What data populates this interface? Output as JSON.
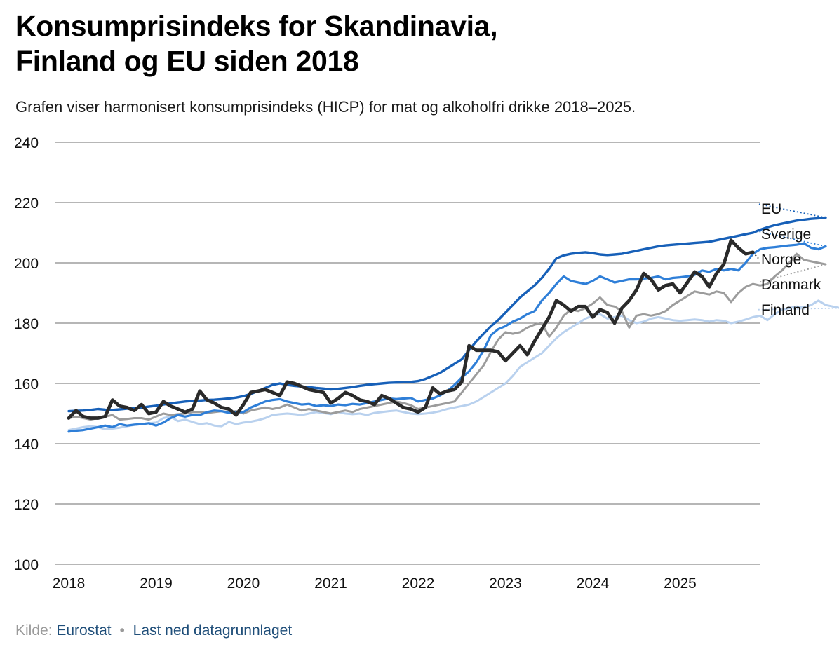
{
  "title_line1": "Konsumprisindeks for Skandinavia,",
  "title_line2": "Finland og EU siden 2018",
  "subtitle": "Grafen viser harmonisert konsumprisindeks (HICP) for mat og alkoholfri drikke 2018–2025.",
  "source": {
    "label": "Kilde:",
    "link": "Eurostat",
    "separator": "•",
    "download": "Last ned datagrunnlaget"
  },
  "colors": {
    "EU": "#1760b8",
    "Sverige": "#2f7fd8",
    "Norge": "#2a2a2a",
    "Danmark": "#9c9c9c",
    "Finland": "#b9d1ee",
    "grid": "#6e6e6e"
  },
  "chart_data": {
    "type": "line",
    "title": "Konsumprisindeks for Skandinavia, Finland og EU siden 2018",
    "xlabel": "",
    "ylabel": "",
    "ylim": [
      100,
      240
    ],
    "yticks": [
      100,
      120,
      140,
      160,
      180,
      200,
      220,
      240
    ],
    "xticks": [
      "2018",
      "2019",
      "2020",
      "2021",
      "2022",
      "2023",
      "2024",
      "2025"
    ],
    "x_start": "2018-01",
    "frequency": "monthly",
    "series": [
      {
        "name": "Finland",
        "values": [
          144.5,
          145.0,
          145.5,
          145.8,
          145.5,
          144.8,
          145.0,
          145.3,
          145.8,
          146.2,
          146.5,
          146.8,
          147.0,
          148.5,
          149.0,
          147.5,
          148.0,
          147.2,
          146.5,
          146.8,
          146.0,
          145.8,
          147.2,
          146.5,
          147.0,
          147.3,
          147.8,
          148.5,
          149.5,
          149.8,
          150.0,
          149.8,
          149.5,
          150.0,
          150.5,
          150.2,
          149.8,
          150.5,
          150.0,
          149.8,
          150.0,
          149.5,
          150.2,
          150.5,
          150.8,
          151.0,
          150.5,
          150.0,
          149.8,
          150.0,
          150.3,
          150.8,
          151.5,
          152.0,
          152.5,
          153.0,
          154.0,
          155.5,
          157.0,
          158.5,
          160.0,
          162.5,
          165.5,
          167.0,
          168.5,
          170.0,
          172.5,
          175.0,
          177.0,
          178.5,
          180.0,
          181.5,
          182.5,
          183.0,
          181.5,
          182.0,
          182.5,
          181.0,
          180.0,
          180.5,
          181.5,
          182.0,
          181.5,
          181.0,
          180.8,
          181.0,
          181.2,
          181.0,
          180.5,
          181.0,
          180.8,
          180.0,
          180.5,
          181.2,
          182.0,
          182.5,
          181.0,
          183.0,
          184.5,
          185.0,
          185.5,
          185.2,
          186.0,
          187.5,
          186.0,
          185.5,
          185.0,
          184.5
        ],
        "end_label": "Finland"
      },
      {
        "name": "Danmark",
        "values": [
          148.5,
          149.0,
          148.5,
          148.0,
          148.5,
          149.0,
          149.5,
          148.0,
          148.2,
          148.5,
          148.5,
          148.0,
          149.0,
          150.0,
          149.5,
          149.8,
          150.0,
          150.5,
          150.5,
          150.2,
          150.5,
          150.8,
          150.5,
          150.8,
          150.0,
          151.0,
          151.5,
          152.0,
          151.5,
          152.0,
          153.0,
          152.0,
          151.0,
          151.5,
          151.0,
          150.5,
          150.0,
          150.5,
          151.0,
          150.5,
          151.5,
          152.0,
          152.5,
          153.0,
          153.5,
          154.0,
          153.5,
          152.8,
          151.5,
          152.0,
          152.5,
          153.0,
          153.5,
          154.0,
          157.0,
          160.0,
          163.0,
          166.0,
          170.5,
          174.5,
          177.0,
          176.5,
          177.0,
          178.5,
          179.5,
          180.0,
          175.5,
          178.5,
          182.5,
          184.5,
          184.0,
          185.0,
          186.5,
          188.5,
          186.0,
          185.5,
          184.0,
          178.5,
          182.5,
          183.0,
          182.5,
          183.0,
          184.0,
          186.0,
          187.5,
          189.0,
          190.5,
          190.0,
          189.5,
          190.5,
          190.0,
          187.0,
          190.0,
          192.0,
          193.0,
          192.5,
          193.0,
          195.5,
          197.5,
          200.0,
          203.0,
          201.0,
          200.5,
          200.0,
          199.5,
          193.5
        ],
        "end_label": "Danmark"
      },
      {
        "name": "Sverige",
        "values": [
          144.0,
          144.3,
          144.5,
          145.0,
          145.5,
          146.0,
          145.5,
          146.5,
          146.0,
          146.3,
          146.5,
          146.8,
          146.0,
          147.0,
          148.5,
          149.5,
          149.0,
          149.5,
          149.5,
          150.5,
          151.0,
          150.8,
          150.2,
          150.5,
          150.5,
          152.0,
          153.0,
          154.0,
          154.5,
          154.8,
          154.0,
          153.5,
          153.0,
          153.2,
          152.5,
          152.8,
          152.5,
          153.0,
          152.8,
          153.2,
          153.0,
          153.5,
          154.0,
          154.5,
          155.0,
          154.8,
          155.0,
          155.2,
          154.0,
          154.5,
          155.0,
          156.0,
          157.5,
          159.5,
          162.0,
          164.0,
          167.0,
          171.0,
          176.0,
          178.0,
          179.0,
          180.5,
          181.5,
          183.0,
          184.0,
          187.5,
          190.0,
          193.0,
          195.5,
          194.0,
          193.5,
          193.0,
          194.0,
          195.5,
          194.5,
          193.5,
          194.0,
          194.5,
          194.5,
          194.8,
          195.0,
          195.5,
          194.5,
          195.0,
          195.2,
          195.5,
          196.0,
          197.5,
          197.0,
          198.0,
          197.5,
          198.0,
          197.5,
          200.0,
          203.0,
          204.5,
          205.0,
          205.2,
          205.5,
          205.8,
          206.0,
          206.5,
          205.0,
          204.5,
          205.5,
          210.5
        ],
        "end_label": "Sverige"
      },
      {
        "name": "EU",
        "values": [
          150.8,
          150.9,
          151.0,
          151.2,
          151.5,
          151.3,
          151.2,
          151.4,
          151.6,
          151.8,
          152.0,
          152.3,
          152.6,
          153.0,
          153.4,
          153.7,
          154.0,
          154.2,
          154.3,
          154.5,
          154.6,
          154.8,
          155.0,
          155.3,
          155.8,
          156.5,
          157.5,
          158.5,
          159.5,
          160.0,
          159.5,
          159.2,
          159.0,
          158.8,
          158.5,
          158.3,
          158.0,
          158.2,
          158.5,
          158.8,
          159.2,
          159.5,
          159.8,
          160.0,
          160.2,
          160.3,
          160.4,
          160.5,
          160.8,
          161.5,
          162.5,
          163.5,
          165.0,
          166.5,
          168.0,
          171.0,
          174.0,
          176.5,
          179.0,
          181.0,
          183.5,
          186.0,
          188.5,
          190.5,
          192.5,
          195.0,
          198.0,
          201.5,
          202.5,
          203.0,
          203.3,
          203.5,
          203.2,
          202.8,
          202.6,
          202.8,
          203.0,
          203.5,
          204.0,
          204.5,
          205.0,
          205.5,
          205.8,
          206.0,
          206.2,
          206.4,
          206.6,
          206.8,
          207.0,
          207.5,
          208.0,
          208.5,
          209.0,
          209.5,
          210.0,
          211.0,
          211.8,
          212.5,
          213.0,
          213.5,
          214.0,
          214.3,
          214.6,
          214.8,
          215.0,
          219.5
        ],
        "end_label": "EU"
      },
      {
        "name": "Norge",
        "values": [
          148.5,
          151.0,
          149.0,
          148.5,
          148.5,
          149.0,
          154.5,
          152.5,
          152.0,
          151.0,
          153.0,
          150.0,
          150.5,
          154.0,
          152.5,
          151.5,
          150.5,
          151.5,
          157.5,
          154.5,
          153.5,
          152.0,
          151.5,
          149.5,
          153.0,
          157.0,
          157.5,
          158.0,
          157.0,
          156.0,
          160.5,
          160.0,
          159.0,
          158.0,
          157.5,
          157.0,
          153.5,
          155.0,
          157.0,
          156.0,
          154.5,
          154.0,
          153.0,
          156.0,
          155.0,
          153.5,
          152.0,
          151.5,
          150.5,
          152.0,
          158.5,
          156.5,
          157.5,
          158.0,
          160.5,
          172.5,
          171.0,
          171.0,
          171.0,
          170.5,
          167.5,
          170.0,
          172.5,
          169.5,
          174.0,
          178.0,
          182.0,
          187.5,
          186.0,
          184.0,
          185.5,
          185.5,
          182.0,
          184.5,
          183.5,
          180.0,
          185.0,
          187.5,
          191.0,
          196.5,
          194.5,
          191.0,
          192.5,
          193.0,
          190.0,
          193.5,
          197.0,
          195.5,
          192.0,
          196.5,
          199.5,
          207.5,
          205.0,
          203.0,
          203.5,
          201.5
        ],
        "end_label": "Norge"
      }
    ]
  }
}
